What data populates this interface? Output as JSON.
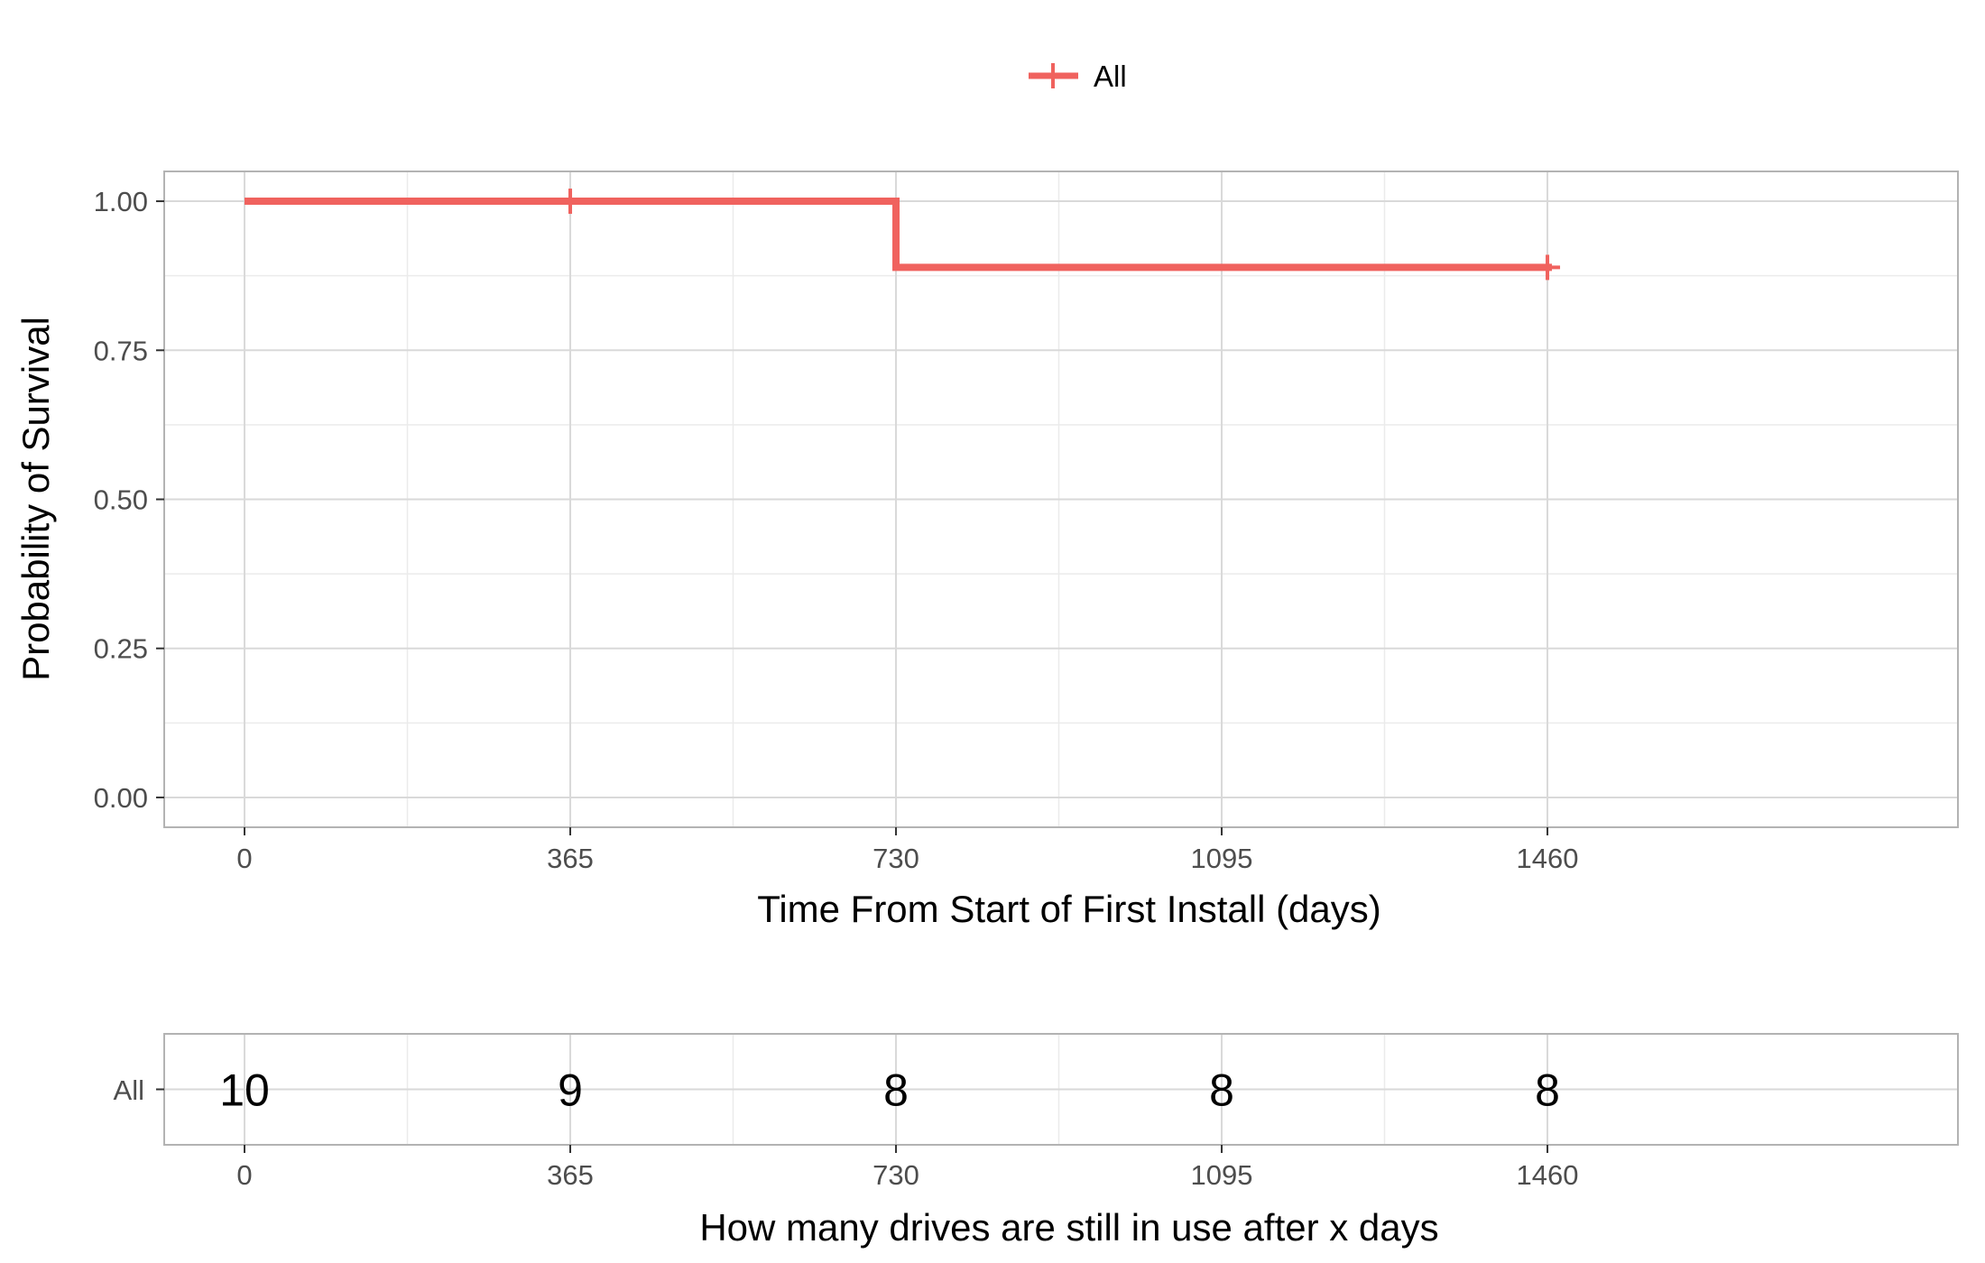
{
  "colors": {
    "series": "#F0625E",
    "grid_major": "#D9D9D9",
    "grid_minor": "#EBEBEB",
    "panel_border": "#B3B3B3",
    "tick_text": "#4D4D4D"
  },
  "chart_data": [
    {
      "type": "line",
      "step": true,
      "legend": {
        "position": "top",
        "entries": [
          {
            "name": "All",
            "marker": "plus"
          }
        ]
      },
      "xlabel": "Time From Start of First Install (days)",
      "ylabel": "Probability of Survival",
      "xlim": [
        -90,
        1920
      ],
      "ylim": [
        -0.05,
        1.05
      ],
      "x_ticks": [
        0,
        365,
        730,
        1095,
        1460
      ],
      "y_ticks": [
        0,
        0.25,
        0.5,
        0.75,
        1.0
      ],
      "y_tick_labels": [
        "0.00",
        "0.25",
        "0.50",
        "0.75",
        "1.00"
      ],
      "grid": true,
      "series": [
        {
          "name": "All",
          "x": [
            0,
            730,
            1460
          ],
          "y": [
            1.0,
            0.889,
            0.889
          ],
          "censored": [
            {
              "x": 365,
              "y": 1.0
            },
            {
              "x": 1460,
              "y": 0.889
            }
          ]
        }
      ]
    },
    {
      "type": "table",
      "xlabel": "How many drives are still in use after x days",
      "xlim": [
        -90,
        1920
      ],
      "x_ticks": [
        0,
        365,
        730,
        1095,
        1460
      ],
      "rows": [
        {
          "label": "All",
          "x": [
            0,
            365,
            730,
            1095,
            1460
          ],
          "values": [
            10,
            9,
            8,
            8,
            8
          ]
        }
      ]
    }
  ]
}
